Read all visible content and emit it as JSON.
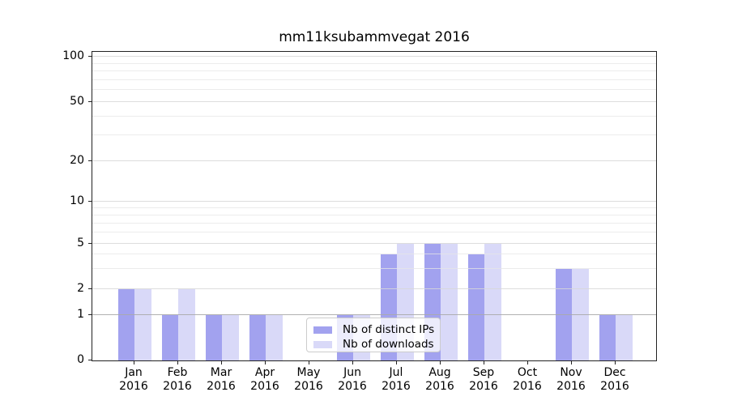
{
  "chart_data": {
    "type": "bar",
    "title": "mm11ksubammvegat 2016",
    "categories": [
      {
        "month": "Jan",
        "year": "2016"
      },
      {
        "month": "Feb",
        "year": "2016"
      },
      {
        "month": "Mar",
        "year": "2016"
      },
      {
        "month": "Apr",
        "year": "2016"
      },
      {
        "month": "May",
        "year": "2016"
      },
      {
        "month": "Jun",
        "year": "2016"
      },
      {
        "month": "Jul",
        "year": "2016"
      },
      {
        "month": "Aug",
        "year": "2016"
      },
      {
        "month": "Sep",
        "year": "2016"
      },
      {
        "month": "Oct",
        "year": "2016"
      },
      {
        "month": "Nov",
        "year": "2016"
      },
      {
        "month": "Dec",
        "year": "2016"
      }
    ],
    "series": [
      {
        "name": "Nb of distinct IPs",
        "color": "#a2a2ef",
        "values": [
          2,
          1,
          1,
          1,
          0,
          1,
          4,
          5,
          4,
          0,
          3,
          1
        ]
      },
      {
        "name": "Nb of downloads",
        "color": "#d9d9f8",
        "values": [
          2,
          2,
          1,
          1,
          0,
          1,
          5,
          5,
          5,
          0,
          3,
          1
        ]
      }
    ],
    "y_axis": {
      "ticks": [
        0,
        1,
        2,
        5,
        10,
        20,
        50,
        100
      ],
      "minor_ticks": [
        3,
        4,
        6,
        7,
        8,
        9,
        30,
        40,
        60,
        70,
        80,
        90
      ],
      "scale": "log-like above 1 with linear 0-1 segment",
      "ylim": [
        0,
        110
      ]
    },
    "xlabel": "",
    "ylabel": "",
    "grid": true,
    "legend": {
      "entries": [
        "Nb of distinct IPs",
        "Nb of downloads"
      ],
      "position": "inside, lower middle-left"
    }
  }
}
